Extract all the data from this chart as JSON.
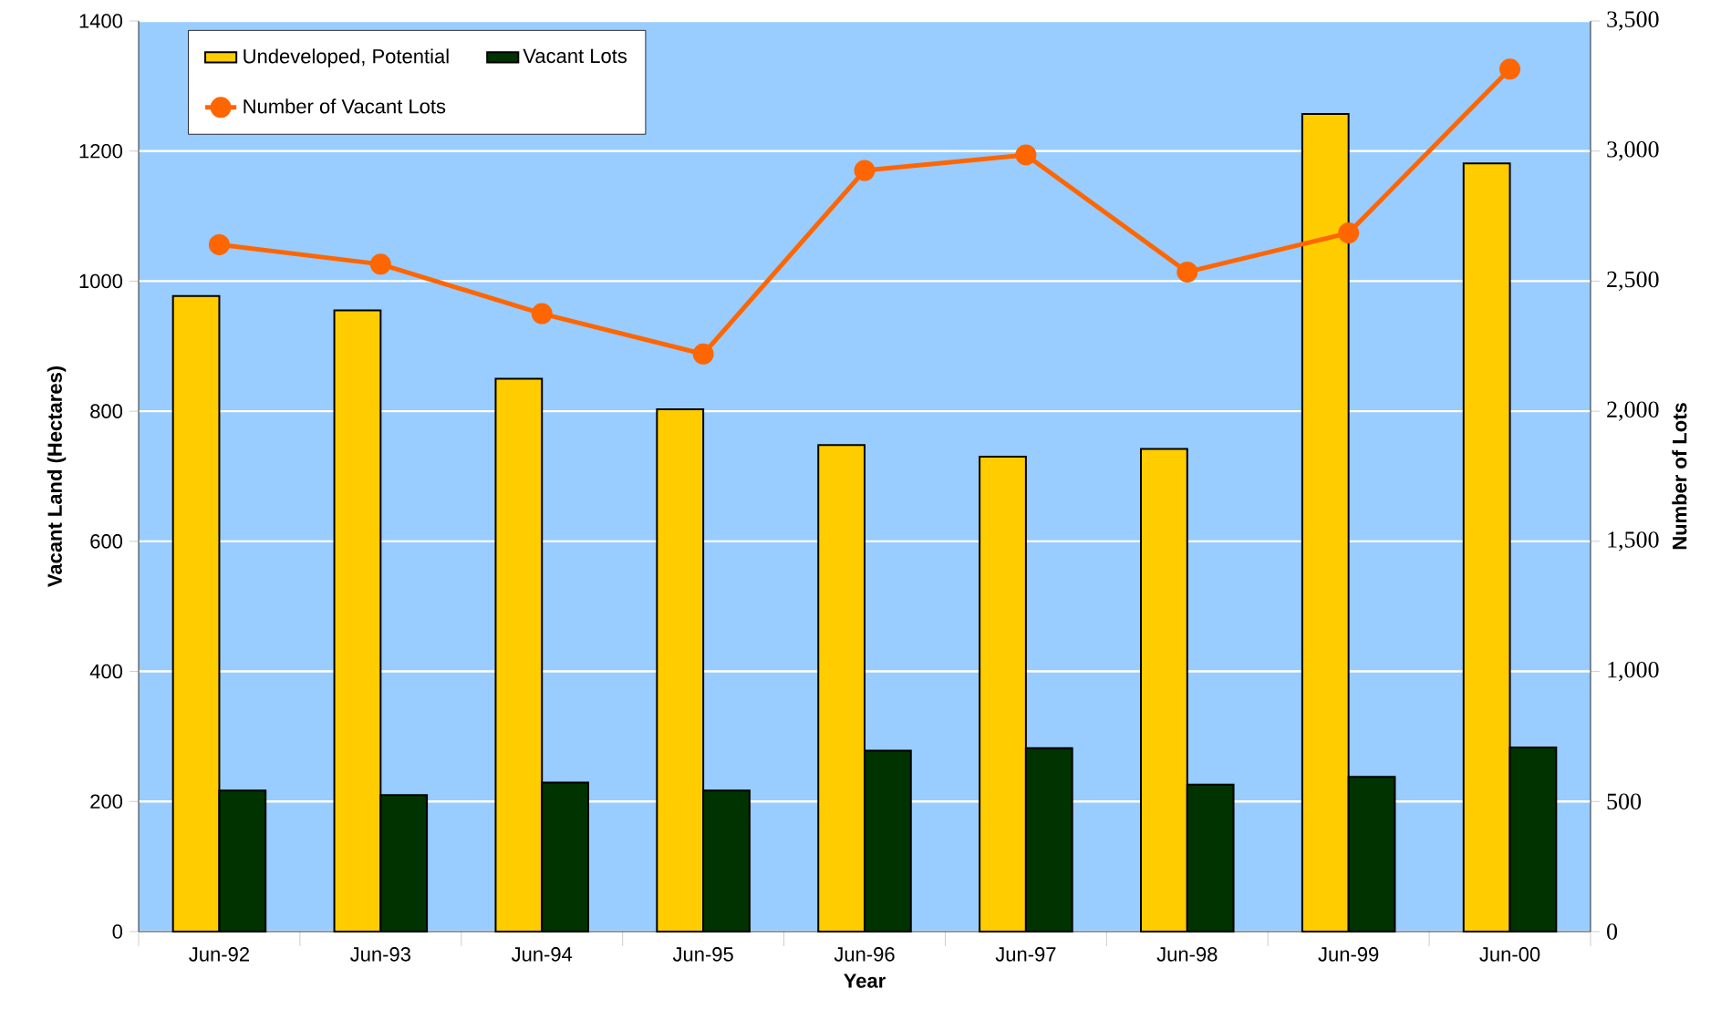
{
  "chart_data": {
    "type": "bar",
    "xlabel": "Year",
    "ylabel": "Vacant Land (Hectares)",
    "y2label": "Number of Lots",
    "categories": [
      "Jun-92",
      "Jun-93",
      "Jun-94",
      "Jun-95",
      "Jun-96",
      "Jun-97",
      "Jun-98",
      "Jun-99",
      "Jun-00"
    ],
    "series": [
      {
        "name": "Undeveloped, Potential",
        "color": "#ffcc00",
        "values": [
          977,
          955,
          850,
          803,
          748,
          730,
          742,
          1257,
          1181
        ]
      },
      {
        "name": "Vacant Lots",
        "color": "#003300",
        "values": [
          217,
          210,
          229,
          217,
          278,
          282,
          226,
          238,
          283
        ]
      },
      {
        "name": "Number of Vacant Lots",
        "type": "line",
        "axis": "y2",
        "color": "#ff6600",
        "values": [
          2640,
          2565,
          2375,
          2220,
          2925,
          2985,
          2535,
          2685,
          3315
        ]
      }
    ],
    "ylim": [
      0,
      1400
    ],
    "yticks": [
      0,
      200,
      400,
      600,
      800,
      1000,
      1200,
      1400
    ],
    "y2lim": [
      0,
      3500
    ],
    "y2ticks": [
      0,
      {
        "value": 500,
        "label": "500"
      },
      {
        "value": 1000,
        "label": "1,000"
      },
      {
        "value": 1500,
        "label": "1,500"
      },
      {
        "value": 2000,
        "label": "2,000"
      },
      {
        "value": 2500,
        "label": "2,500"
      },
      {
        "value": 3000,
        "label": "3,000"
      },
      {
        "value": 3500,
        "label": "3,500"
      }
    ],
    "grid": "y",
    "legend": "top left",
    "marker": "circle"
  }
}
